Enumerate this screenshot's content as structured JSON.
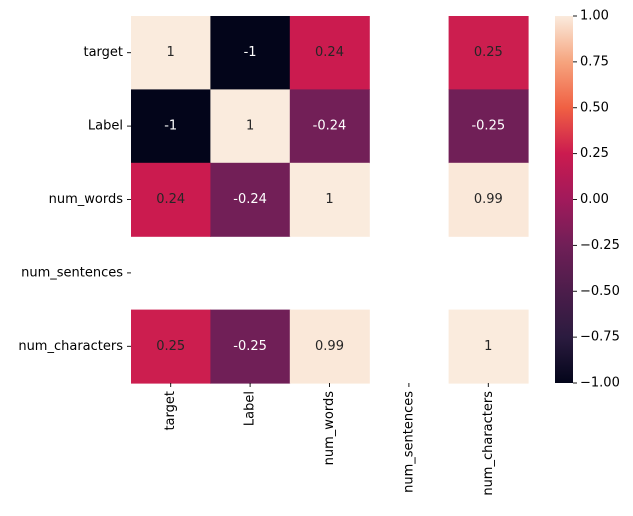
{
  "chart_data": {
    "type": "heatmap",
    "rows": [
      "target",
      "Label",
      "num_words",
      "num_sentences",
      "num_characters"
    ],
    "cols": [
      "target",
      "Label",
      "num_words",
      "num_sentences",
      "num_characters"
    ],
    "values": [
      [
        1,
        -1,
        0.24,
        null,
        0.25
      ],
      [
        -1,
        1,
        -0.24,
        null,
        -0.25
      ],
      [
        0.24,
        -0.24,
        1,
        null,
        0.99
      ],
      [
        null,
        null,
        null,
        null,
        null
      ],
      [
        0.25,
        -0.25,
        0.99,
        null,
        1
      ]
    ],
    "annotations": [
      [
        "1",
        "-1",
        "0.24",
        "",
        "0.25"
      ],
      [
        "-1",
        "1",
        "-0.24",
        "",
        "-0.25"
      ],
      [
        "0.24",
        "-0.24",
        "1",
        "",
        "0.99"
      ],
      [
        "",
        "",
        "",
        "",
        ""
      ],
      [
        "0.25",
        "-0.25",
        "0.99",
        "",
        "1"
      ]
    ],
    "vmin": -1,
    "vmax": 1,
    "colormap": "rocket",
    "colorbar_ticks": [
      "1.00",
      "0.75",
      "0.50",
      "0.25",
      "0.00",
      "−0.25",
      "−0.50",
      "−0.75",
      "−1.00"
    ],
    "colorbar_tick_values": [
      1,
      0.75,
      0.5,
      0.25,
      0,
      -0.25,
      -0.5,
      -0.75,
      -1
    ]
  }
}
